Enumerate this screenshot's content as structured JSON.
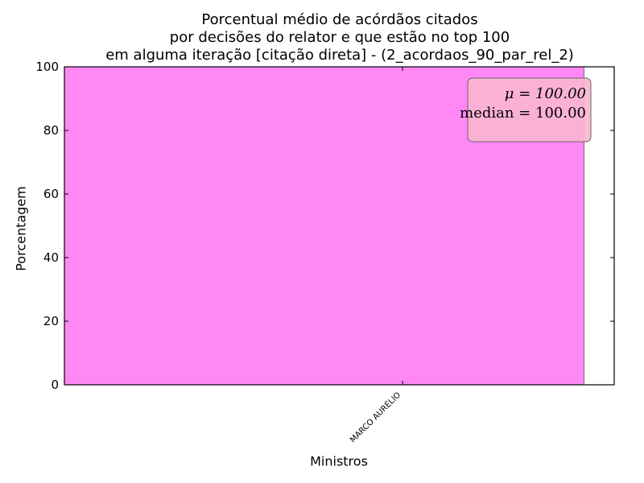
{
  "chart_data": {
    "type": "bar",
    "title_lines": [
      "Porcentual médio de acórdãos citados",
      "por decisões do relator e que estão no top 100",
      "em alguma iteração [citação direta] - (2_acordaos_90_par_rel_2)"
    ],
    "xlabel": "Ministros",
    "ylabel": "Porcentagem",
    "categories": [
      "MARCO AURÉLIO"
    ],
    "values": [
      100
    ],
    "ylim": [
      0,
      100
    ],
    "yticks": [
      0,
      20,
      40,
      60,
      80,
      100
    ],
    "grid": false,
    "bar_color": "#ff88f5",
    "mean_line_color": "#cc2222",
    "stats_box": {
      "mu_text": "μ = 100.00",
      "median_text": "median = 100.00",
      "background": "#f9b6d2",
      "placement": "top-right"
    }
  }
}
